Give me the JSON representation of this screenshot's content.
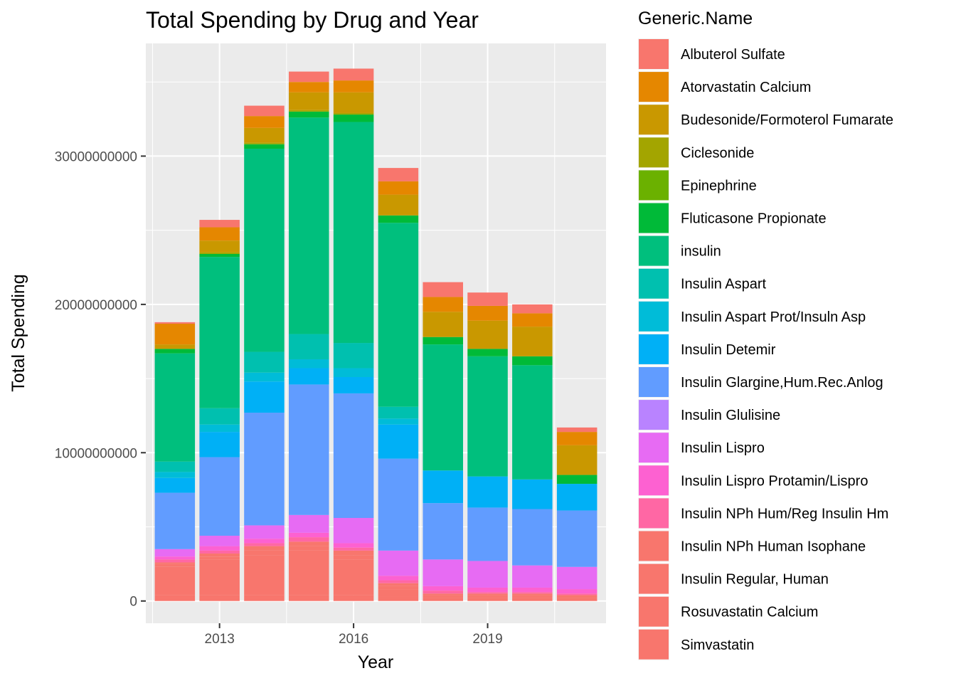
{
  "chart_data": {
    "type": "bar",
    "stacked": true,
    "title": "Total Spending by Drug and Year",
    "xlabel": "Year",
    "ylabel": "Total Spending",
    "legend_title": "Generic.Name",
    "legend_position": "right",
    "grid": true,
    "xlim": [
      2011.35,
      2021.65
    ],
    "ylim": [
      -1500000000,
      37600000000
    ],
    "x_ticks": [
      2013,
      2016,
      2019
    ],
    "x_tick_labels": [
      "2013",
      "2016",
      "2019"
    ],
    "y_ticks": [
      0,
      10000000000,
      20000000000,
      30000000000
    ],
    "y_tick_labels": [
      "0",
      "10000000000",
      "20000000000",
      "30000000000"
    ],
    "categories": [
      2012,
      2013,
      2014,
      2015,
      2016,
      2017,
      2018,
      2019,
      2020,
      2021
    ],
    "series": [
      {
        "name": "Albuterol Sulfate",
        "color": "#F8766D",
        "values": [
          100000000,
          500000000,
          700000000,
          700000000,
          800000000,
          900000000,
          1000000000,
          900000000,
          600000000,
          300000000
        ]
      },
      {
        "name": "Atorvastatin Calcium",
        "color": "#E58700",
        "values": [
          1400000000,
          900000000,
          800000000,
          700000000,
          800000000,
          900000000,
          1000000000,
          1000000000,
          900000000,
          900000000
        ]
      },
      {
        "name": "Budesonide/Formoterol Fumarate",
        "color": "#C99800",
        "values": [
          300000000,
          800000000,
          1000000000,
          1200000000,
          1400000000,
          1400000000,
          1700000000,
          1900000000,
          2000000000,
          2000000000
        ]
      },
      {
        "name": "Ciclesonide",
        "color": "#A3A500",
        "values": [
          0,
          100000000,
          100000000,
          100000000,
          100000000,
          0,
          0,
          0,
          0,
          0
        ]
      },
      {
        "name": "Epinephrine",
        "color": "#6BB100",
        "values": [
          0,
          0,
          0,
          0,
          0,
          0,
          0,
          0,
          0,
          0
        ]
      },
      {
        "name": "Fluticasone Propionate",
        "color": "#00BA38",
        "values": [
          300000000,
          200000000,
          300000000,
          400000000,
          500000000,
          500000000,
          500000000,
          500000000,
          600000000,
          600000000
        ]
      },
      {
        "name": "insulin",
        "color": "#00BF7D",
        "values": [
          7300000000,
          10200000000,
          13700000000,
          14600000000,
          14900000000,
          12400000000,
          8500000000,
          8100000000,
          7700000000,
          0
        ]
      },
      {
        "name": "Insulin Aspart",
        "color": "#00C0AF",
        "values": [
          700000000,
          1100000000,
          1400000000,
          1700000000,
          1700000000,
          800000000,
          0,
          0,
          0,
          0
        ]
      },
      {
        "name": "Insulin Aspart Prot/Insuln Asp",
        "color": "#00BCD8",
        "values": [
          400000000,
          500000000,
          600000000,
          600000000,
          600000000,
          400000000,
          0,
          0,
          0,
          0
        ]
      },
      {
        "name": "Insulin Detemir",
        "color": "#00B0F6",
        "values": [
          1000000000,
          1700000000,
          2100000000,
          1100000000,
          1100000000,
          2300000000,
          2200000000,
          2100000000,
          2000000000,
          1800000000
        ]
      },
      {
        "name": "Insulin Glargine,Hum.Rec.Anlog",
        "color": "#619CFF",
        "values": [
          3800000000,
          5300000000,
          7600000000,
          8800000000,
          8400000000,
          6200000000,
          3800000000,
          3600000000,
          3800000000,
          3800000000
        ]
      },
      {
        "name": "Insulin Glulisine",
        "color": "#B983FF",
        "values": [
          0,
          0,
          0,
          0,
          0,
          0,
          0,
          0,
          0,
          0
        ]
      },
      {
        "name": "Insulin Lispro",
        "color": "#E76BF3",
        "values": [
          500000000,
          700000000,
          900000000,
          1200000000,
          1700000000,
          1700000000,
          1800000000,
          1800000000,
          1500000000,
          1500000000
        ]
      },
      {
        "name": "Insulin Lispro Protamin/Lispro",
        "color": "#FD61D1",
        "values": [
          200000000,
          300000000,
          300000000,
          300000000,
          300000000,
          300000000,
          300000000,
          300000000,
          300000000,
          300000000
        ]
      },
      {
        "name": "Insulin NPh Hum/Reg Insulin Hm",
        "color": "#FF67A4",
        "values": [
          200000000,
          200000000,
          200000000,
          300000000,
          200000000,
          200000000,
          200000000,
          100000000,
          100000000,
          100000000
        ]
      },
      {
        "name": "Insulin NPh Human Isophane",
        "color": "#F8766D",
        "values": [
          100000000,
          200000000,
          300000000,
          300000000,
          300000000,
          200000000,
          100000000,
          100000000,
          100000000,
          100000000
        ]
      },
      {
        "name": "Insulin Regular, Human",
        "color": "#F8766D",
        "values": [
          200000000,
          200000000,
          300000000,
          300000000,
          300000000,
          200000000,
          100000000,
          100000000,
          100000000,
          100000000
        ]
      },
      {
        "name": "Rosuvastatin Calcium",
        "color": "#F8766D",
        "values": [
          1900000000,
          2400000000,
          2700000000,
          3000000000,
          2400000000,
          500000000,
          100000000,
          100000000,
          100000000,
          0
        ]
      },
      {
        "name": "Simvastatin",
        "color": "#F8766D",
        "values": [
          400000000,
          400000000,
          400000000,
          400000000,
          400000000,
          300000000,
          200000000,
          200000000,
          200000000,
          200000000
        ]
      }
    ]
  }
}
